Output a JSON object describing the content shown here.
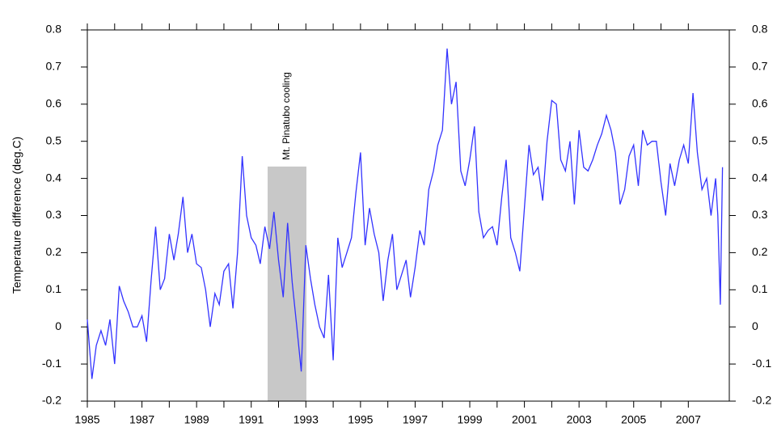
{
  "chart_data": {
    "type": "line",
    "y_label": "Temperature difference (deg.C)",
    "annotation": {
      "text": "Mt. Pinatubo cooling",
      "x_range": [
        1991.6,
        1993.02
      ],
      "y_range": [
        -0.2,
        0.432
      ],
      "color": "#c8c8c8"
    },
    "x": [
      1985.0,
      1985.17,
      1985.33,
      1985.5,
      1985.67,
      1985.83,
      1986.0,
      1986.17,
      1986.33,
      1986.5,
      1986.67,
      1986.83,
      1987.0,
      1987.17,
      1987.33,
      1987.5,
      1987.67,
      1987.83,
      1988.0,
      1988.17,
      1988.33,
      1988.5,
      1988.67,
      1988.83,
      1989.0,
      1989.17,
      1989.33,
      1989.5,
      1989.67,
      1989.83,
      1990.0,
      1990.17,
      1990.33,
      1990.5,
      1990.67,
      1990.83,
      1991.0,
      1991.17,
      1991.33,
      1991.5,
      1991.67,
      1991.83,
      1992.0,
      1992.17,
      1992.33,
      1992.5,
      1992.67,
      1992.83,
      1993.0,
      1993.17,
      1993.33,
      1993.5,
      1993.67,
      1993.83,
      1994.0,
      1994.17,
      1994.33,
      1994.5,
      1994.67,
      1994.83,
      1995.0,
      1995.17,
      1995.33,
      1995.5,
      1995.67,
      1995.83,
      1996.0,
      1996.17,
      1996.33,
      1996.5,
      1996.67,
      1996.83,
      1997.0,
      1997.17,
      1997.33,
      1997.5,
      1997.67,
      1997.83,
      1998.0,
      1998.17,
      1998.33,
      1998.5,
      1998.67,
      1998.83,
      1999.0,
      1999.17,
      1999.33,
      1999.5,
      1999.67,
      1999.83,
      2000.0,
      2000.17,
      2000.33,
      2000.5,
      2000.67,
      2000.83,
      2001.0,
      2001.17,
      2001.33,
      2001.5,
      2001.67,
      2001.83,
      2002.0,
      2002.17,
      2002.33,
      2002.5,
      2002.67,
      2002.83,
      2003.0,
      2003.17,
      2003.33,
      2003.5,
      2003.67,
      2003.83,
      2004.0,
      2004.17,
      2004.33,
      2004.5,
      2004.67,
      2004.83,
      2005.0,
      2005.17,
      2005.33,
      2005.5,
      2005.67,
      2005.83,
      2006.0,
      2006.17,
      2006.33,
      2006.5,
      2006.67,
      2006.83,
      2007.0,
      2007.17,
      2007.33,
      2007.5,
      2007.67,
      2007.83,
      2008.0,
      2008.08,
      2008.17,
      2008.25
    ],
    "series": [
      {
        "color": "#3333ff",
        "values": [
          0.02,
          -0.14,
          -0.05,
          -0.01,
          -0.05,
          0.02,
          -0.1,
          0.11,
          0.07,
          0.04,
          0.0,
          0.0,
          0.03,
          -0.04,
          0.12,
          0.27,
          0.1,
          0.13,
          0.25,
          0.18,
          0.25,
          0.35,
          0.2,
          0.25,
          0.17,
          0.16,
          0.1,
          0.0,
          0.09,
          0.06,
          0.15,
          0.17,
          0.05,
          0.2,
          0.46,
          0.3,
          0.24,
          0.22,
          0.17,
          0.27,
          0.21,
          0.31,
          0.18,
          0.08,
          0.28,
          0.12,
          0.0,
          -0.12,
          0.22,
          0.13,
          0.06,
          0.0,
          -0.03,
          0.14,
          -0.09,
          0.24,
          0.16,
          0.2,
          0.24,
          0.36,
          0.47,
          0.22,
          0.32,
          0.25,
          0.2,
          0.07,
          0.18,
          0.25,
          0.1,
          0.14,
          0.18,
          0.08,
          0.16,
          0.26,
          0.22,
          0.37,
          0.42,
          0.49,
          0.53,
          0.75,
          0.6,
          0.66,
          0.42,
          0.38,
          0.45,
          0.54,
          0.31,
          0.24,
          0.26,
          0.27,
          0.22,
          0.35,
          0.45,
          0.24,
          0.2,
          0.15,
          0.32,
          0.49,
          0.41,
          0.43,
          0.34,
          0.5,
          0.61,
          0.6,
          0.45,
          0.42,
          0.5,
          0.33,
          0.53,
          0.43,
          0.42,
          0.45,
          0.49,
          0.52,
          0.57,
          0.53,
          0.47,
          0.33,
          0.37,
          0.46,
          0.49,
          0.38,
          0.53,
          0.49,
          0.5,
          0.5,
          0.39,
          0.3,
          0.44,
          0.38,
          0.45,
          0.49,
          0.44,
          0.63,
          0.47,
          0.37,
          0.4,
          0.3,
          0.4,
          0.3,
          0.06,
          0.43
        ]
      }
    ],
    "xlim": [
      1985,
      2008.5
    ],
    "ylim": [
      -0.2,
      0.8
    ],
    "xticks": [
      1985,
      1987,
      1989,
      1991,
      1993,
      1995,
      1997,
      1999,
      2001,
      2003,
      2005,
      2007
    ],
    "yticks": [
      {
        "value": -0.2,
        "label": "-0.2"
      },
      {
        "value": -0.1,
        "label": "-0.1"
      },
      0,
      {
        "value": 0.1,
        "label": "0.1"
      },
      {
        "value": 0.2,
        "label": "0.2"
      },
      {
        "value": 0.3,
        "label": "0.3"
      },
      {
        "value": 0.4,
        "label": "0.4"
      },
      {
        "value": 0.5,
        "label": "0.5"
      },
      {
        "value": 0.6,
        "label": "0.6"
      },
      {
        "value": 0.7,
        "label": "0.7"
      },
      {
        "value": 0.8,
        "label": "0.8"
      }
    ],
    "grid": false
  }
}
